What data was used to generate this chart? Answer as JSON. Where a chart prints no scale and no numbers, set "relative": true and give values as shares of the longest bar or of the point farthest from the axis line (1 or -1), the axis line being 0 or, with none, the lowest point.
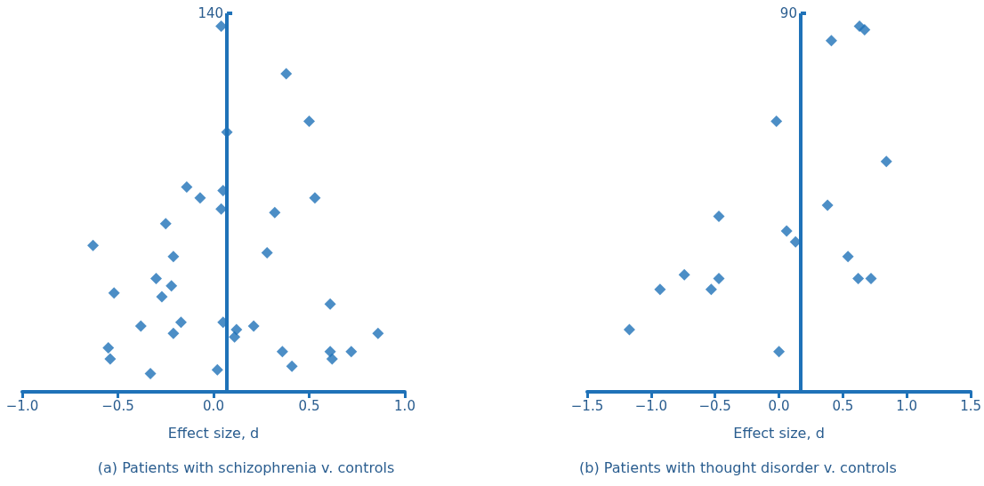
{
  "chart_data": [
    {
      "type": "scatter",
      "title": "(a) Patients with schizophrenia v. controls",
      "xlabel": "Effect size, d",
      "relative": true,
      "marker": "diamond",
      "tick_labels": "x",
      "xlim": [
        -1,
        1
      ],
      "xticks": [
        {
          "value": -1,
          "label": "−1.0"
        },
        {
          "value": -0.5,
          "label": "−0.5"
        },
        {
          "value": 0,
          "label": "0.0"
        },
        {
          "value": 0.5,
          "label": "0.5"
        },
        {
          "value": 1,
          "label": "1.0"
        }
      ],
      "ref_lines": [
        {
          "axis": "x",
          "value": 0.07,
          "color": "#1f72b8"
        }
      ],
      "annotations": [
        "140"
      ],
      "series": [
        {
          "color": "#1f72b8",
          "x": [
            0.04,
            0.38,
            0.5,
            0.07,
            -0.14,
            0.05,
            -0.07,
            0.53,
            0.04,
            0.32,
            -0.25,
            -0.63,
            0.28,
            -0.21,
            -0.52,
            -0.3,
            -0.22,
            -0.27,
            0.61,
            -0.17,
            0.05,
            -0.38,
            0.12,
            0.21,
            -0.21,
            0.11,
            0.86,
            -0.55,
            0.36,
            0.61,
            0.72,
            -0.54,
            0.62,
            0.41,
            0.02,
            -0.33
          ],
          "values": [
            1,
            0.87,
            0.74,
            0.71,
            0.56,
            0.55,
            0.53,
            0.53,
            0.5,
            0.49,
            0.46,
            0.4,
            0.38,
            0.37,
            0.27,
            0.31,
            0.29,
            0.26,
            0.24,
            0.19,
            0.19,
            0.18,
            0.17,
            0.18,
            0.16,
            0.15,
            0.16,
            0.12,
            0.11,
            0.11,
            0.11,
            0.09,
            0.09,
            0.07,
            0.06,
            0.05
          ]
        }
      ]
    },
    {
      "type": "scatter",
      "title": "(b) Patients with thought disorder v. controls",
      "xlabel": "Effect size, d",
      "relative": true,
      "marker": "diamond",
      "tick_labels": "x",
      "xlim": [
        -1.5,
        1.5
      ],
      "xticks": [
        {
          "value": -1.5,
          "label": "−1.5"
        },
        {
          "value": -1,
          "label": "−1.0"
        },
        {
          "value": -0.5,
          "label": "−0.5"
        },
        {
          "value": 0,
          "label": "0.0"
        },
        {
          "value": 0.5,
          "label": "0.5"
        },
        {
          "value": 1,
          "label": "1.0"
        },
        {
          "value": 1.5,
          "label": "1.5"
        }
      ],
      "ref_lines": [
        {
          "axis": "x",
          "value": 0.17,
          "color": "#1f72b8"
        }
      ],
      "annotations": [
        "90"
      ],
      "series": [
        {
          "color": "#1f72b8",
          "x": [
            0.63,
            0.67,
            0.41,
            -0.02,
            0.84,
            0.38,
            -0.47,
            0.06,
            0.13,
            0.54,
            0.62,
            0.72,
            -0.74,
            -0.47,
            -0.93,
            -0.53,
            -1.17,
            0.0
          ],
          "values": [
            1,
            0.99,
            0.96,
            0.74,
            0.63,
            0.51,
            0.48,
            0.44,
            0.41,
            0.37,
            0.31,
            0.31,
            0.32,
            0.31,
            0.28,
            0.28,
            0.17,
            0.11
          ]
        }
      ]
    }
  ]
}
